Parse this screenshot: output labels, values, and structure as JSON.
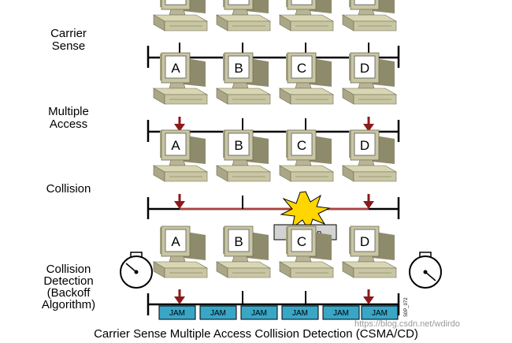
{
  "title": "Carrier Sense Multiple Access Collision Detection (CSMA/CD)",
  "colors": {
    "computer_body": "#c9c6a4",
    "computer_shadow": "#8e8b6c",
    "screen": "#ffffff",
    "arrow": "#8b1a1a",
    "collision_line": "#b04040",
    "jam_fill": "#3aa6c6",
    "burst": "#ffd600",
    "label_box": "#d3d3d3"
  },
  "computers": [
    "A",
    "B",
    "C",
    "D"
  ],
  "rows": [
    {
      "id": "carrier-sense",
      "label": [
        "Carrier",
        "Sense"
      ]
    },
    {
      "id": "multiple-access",
      "label": [
        "Multiple",
        "Access"
      ]
    },
    {
      "id": "collision",
      "label": [
        "Collision"
      ]
    },
    {
      "id": "collision-detection",
      "label": [
        "Collision",
        "Detection",
        "(Backoff",
        "Algorithm)"
      ]
    }
  ],
  "collision_label": "Collision",
  "jam_label": "JAM",
  "jam_count": 6,
  "side_code": "S0P_072",
  "watermark": "https://blog.csdn.net/wdirdo"
}
